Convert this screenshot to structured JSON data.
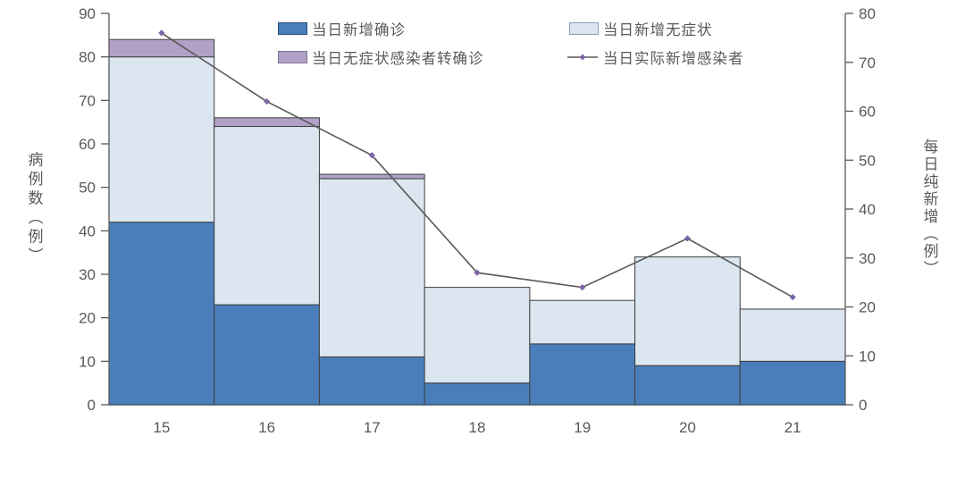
{
  "chart_data": {
    "type": "combo-stacked-bar-line",
    "categories": [
      "15",
      "16",
      "17",
      "18",
      "19",
      "20",
      "21"
    ],
    "bar_series": [
      {
        "name": "当日新增确诊",
        "values": [
          42,
          23,
          11,
          5,
          14,
          9,
          10
        ],
        "fill": "#4a7ebb",
        "stroke": "#3f3f3f",
        "swatch_border": "#2c4d75"
      },
      {
        "name": "当日新增无症状",
        "values": [
          38,
          41,
          41,
          22,
          10,
          25,
          12
        ],
        "fill": "#dce6f1",
        "stroke": "#3f3f3f",
        "swatch_border": "#8d9db5"
      },
      {
        "name": "当日无症状感染者转确诊",
        "values": [
          4,
          2,
          1,
          0,
          0,
          0,
          0
        ],
        "fill": "#b2a1c7",
        "stroke": "#3f3f3f",
        "swatch_border": "#7e7391"
      }
    ],
    "line_series": {
      "name": "当日实际新增感染者",
      "values": [
        76,
        62,
        51,
        27,
        24,
        34,
        22
      ],
      "axis": "right",
      "color": "#595959",
      "marker": "diamond",
      "marker_color": "#7c64a5"
    },
    "left_axis": {
      "label": "病例数（例）",
      "min": 0,
      "max": 90,
      "step": 10,
      "ticks": [
        0,
        10,
        20,
        30,
        40,
        50,
        60,
        70,
        80,
        90
      ]
    },
    "right_axis": {
      "label": "每日纯新增（例）",
      "min": 0,
      "max": 80,
      "step": 10,
      "ticks": [
        0,
        10,
        20,
        30,
        40,
        50,
        60,
        70,
        80
      ]
    },
    "legend_position": "top-inside-two-columns",
    "grid": "off",
    "bar_gap": 0,
    "styles": {
      "axis_color": "#595959",
      "tick_label_color": "#595959",
      "category_axis_line_color": "#b9c9de",
      "background": "#ffffff"
    }
  }
}
